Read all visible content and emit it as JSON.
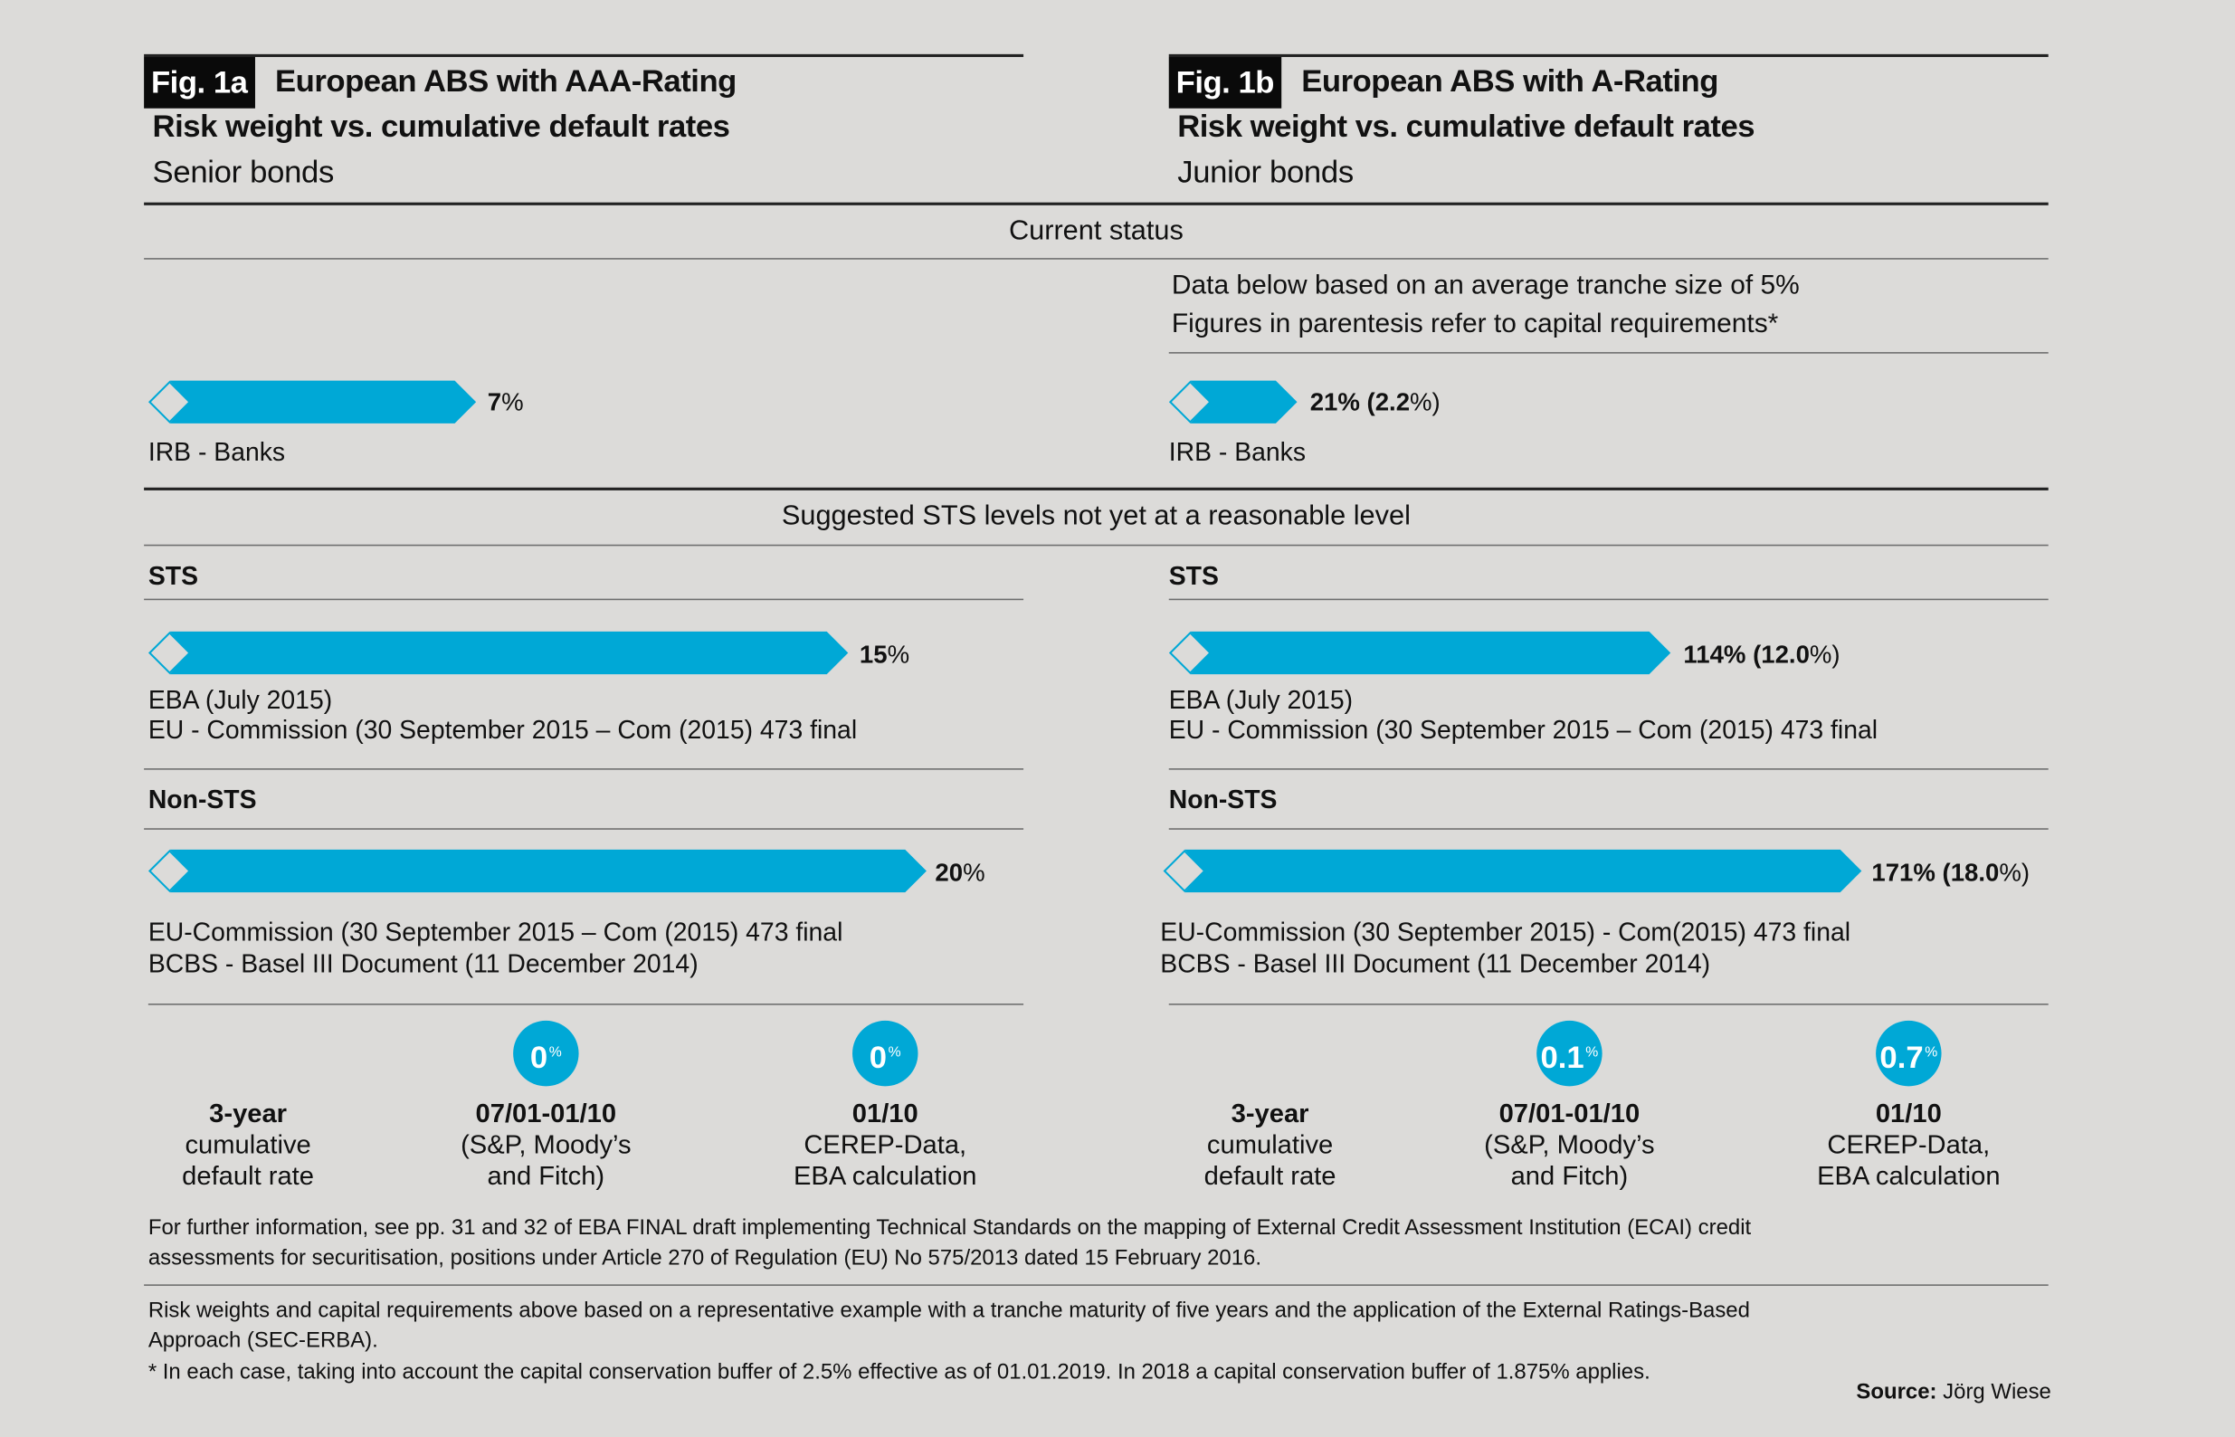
{
  "colors": {
    "accent": "#00a8d6",
    "background": "#dcdbd9"
  },
  "left": {
    "fig_label": "Fig. 1a",
    "title": "European ABS with AAA-Rating",
    "subtitle": "Risk weight vs. cumulative default rates",
    "bond_type": "Senior bonds",
    "irb": {
      "value": "7",
      "unit": "%",
      "label": "IRB - Banks"
    },
    "sts": {
      "heading": "STS",
      "value": "15",
      "unit": "%",
      "lines": [
        "EBA (July 2015)",
        "EU - Commission (30 September 2015 – Com (2015) 473 final"
      ]
    },
    "nonsts": {
      "heading": "Non-STS",
      "value": "20",
      "unit": "%",
      "lines": [
        "EU-Commission (30 September 2015 – Com (2015) 473 final",
        "BCBS - Basel III Document (11 December 2014)"
      ]
    },
    "default_label": [
      "3-year",
      "cumulative",
      "default rate"
    ],
    "rates": [
      {
        "value": "0",
        "unit": "%",
        "lines": [
          "07/01-01/10",
          "(S&P, Moody’s",
          "and Fitch)"
        ]
      },
      {
        "value": "0",
        "unit": "%",
        "lines": [
          "01/10",
          "CEREP-Data,",
          "EBA calculation"
        ]
      }
    ]
  },
  "right": {
    "fig_label": "Fig. 1b",
    "title": "European ABS with A-Rating",
    "subtitle": "Risk weight vs. cumulative default rates",
    "bond_type": "Junior bonds",
    "note": [
      "Data below based on an average tranche size of 5%",
      "Figures in parentesis refer to capital requirements*"
    ],
    "irb": {
      "value": "21% (2.2",
      "unit": "%)",
      "label": "IRB - Banks"
    },
    "sts": {
      "heading": "STS",
      "value": "114% (12.0",
      "unit": "%)",
      "lines": [
        "EBA (July 2015)",
        "EU - Commission (30 September 2015 – Com (2015) 473 final"
      ]
    },
    "nonsts": {
      "heading": "Non-STS",
      "value": "171% (18.0",
      "unit": "%)",
      "lines": [
        "EU-Commission (30 September 2015) - Com(2015) 473 final",
        "BCBS - Basel III Document (11 December 2014)"
      ]
    },
    "default_label": [
      "3-year",
      "cumulative",
      "default rate"
    ],
    "rates": [
      {
        "value": "0.1",
        "unit": "%",
        "lines": [
          "07/01-01/10",
          "(S&P, Moody’s",
          "and Fitch)"
        ]
      },
      {
        "value": "0.7",
        "unit": "%",
        "lines": [
          "01/10",
          "CEREP-Data,",
          "EBA calculation"
        ]
      }
    ]
  },
  "sections": {
    "current": "Current status",
    "suggested": "Suggested STS levels not yet at a reasonable level"
  },
  "footnotes": {
    "further": [
      "For further information, see pp. 31 and 32 of EBA FINAL draft implementing Technical Standards on the mapping of External Credit Assessment Institution (ECAI) credit",
      "assessments for securitisation, positions under Article 270 of Regulation (EU) No 575/2013 dated 15 February 2016."
    ],
    "basis": [
      "Risk weights and capital requirements above based on a representative example with a tranche maturity of five years and the application of the External Ratings-Based",
      "Approach (SEC-ERBA).",
      "* In each case, taking into account the capital conservation buffer of 2.5% effective as of 01.01.2019. In 2018 a capital conservation buffer of 1.875% applies."
    ],
    "source_label": "Source:",
    "source": "Jörg Wiese"
  }
}
